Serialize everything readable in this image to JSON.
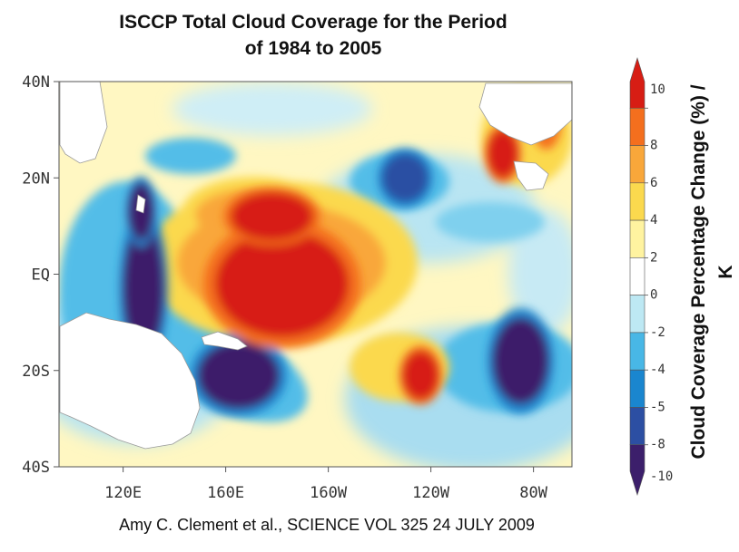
{
  "chart_data": {
    "type": "heatmap",
    "title_lines": [
      "ISCCP Total Cloud Coverage for the Period",
      "of 1984 to 2005"
    ],
    "xlabel": "",
    "ylabel": "",
    "x_ticks": [
      "120E",
      "160E",
      "160W",
      "120W",
      "80W"
    ],
    "y_ticks": [
      "40N",
      "20N",
      "EQ",
      "20S",
      "40S"
    ],
    "colorbar": {
      "label": "Cloud Coverage Percentage Change (%) / K",
      "ticks": [
        "10",
        "8",
        "6",
        "4",
        "2",
        "0",
        "-2",
        "-4",
        "-5",
        "-8",
        "-10"
      ],
      "colors": [
        "#d71d14",
        "#f46f1e",
        "#f9a73a",
        "#fbd94e",
        "#fff3a0",
        "#ffffff",
        "#bde8f3",
        "#48b7e6",
        "#1a86cf",
        "#2c4fa3",
        "#3c1f6b"
      ]
    },
    "regions": [
      {
        "name": "western-pacific-warm-pool-decrease",
        "lon": 128,
        "lat": -3,
        "rlon": 8,
        "rlat": 14,
        "value": -10
      },
      {
        "name": "philippine-sea-decrease",
        "lon": 127,
        "lat": 13,
        "rlon": 5,
        "rlat": 6,
        "value": -10
      },
      {
        "name": "coral-sea-decrease",
        "lon": 165,
        "lat": -21,
        "rlon": 16,
        "rlat": 7,
        "value": -10
      },
      {
        "name": "north-central-pacific-decrease",
        "lon": -130,
        "lat": 20,
        "rlon": 9,
        "rlat": 5,
        "value": -8
      },
      {
        "name": "southeast-pacific-decrease",
        "lon": -85,
        "lat": -18,
        "rlon": 11,
        "rlat": 9,
        "value": -10
      },
      {
        "name": "equatorial-central-pacific-increase",
        "lon": -178,
        "lat": -2,
        "rlon": 26,
        "rlat": 11,
        "value": 10
      },
      {
        "name": "north-central-pacific-increase",
        "lon": 178,
        "lat": 12,
        "rlon": 16,
        "rlat": 5,
        "value": 10
      },
      {
        "name": "south-pacific-increase",
        "lon": -124,
        "lat": -21,
        "rlon": 7,
        "rlat": 5,
        "value": 10
      },
      {
        "name": "gulf-of-mexico-increase",
        "lon": -92,
        "lat": 25,
        "rlon": 6,
        "rlat": 5,
        "value": 10
      },
      {
        "name": "western-atlantic-increase",
        "lon": -75,
        "lat": 32,
        "rlon": 5,
        "rlat": 5,
        "value": 8
      }
    ],
    "xlim": [
      "95E",
      "65W"
    ],
    "ylim": [
      "40S",
      "40N"
    ]
  },
  "citation": "Amy C. Clement et al., SCIENCE VOL 325 24 JULY 2009"
}
